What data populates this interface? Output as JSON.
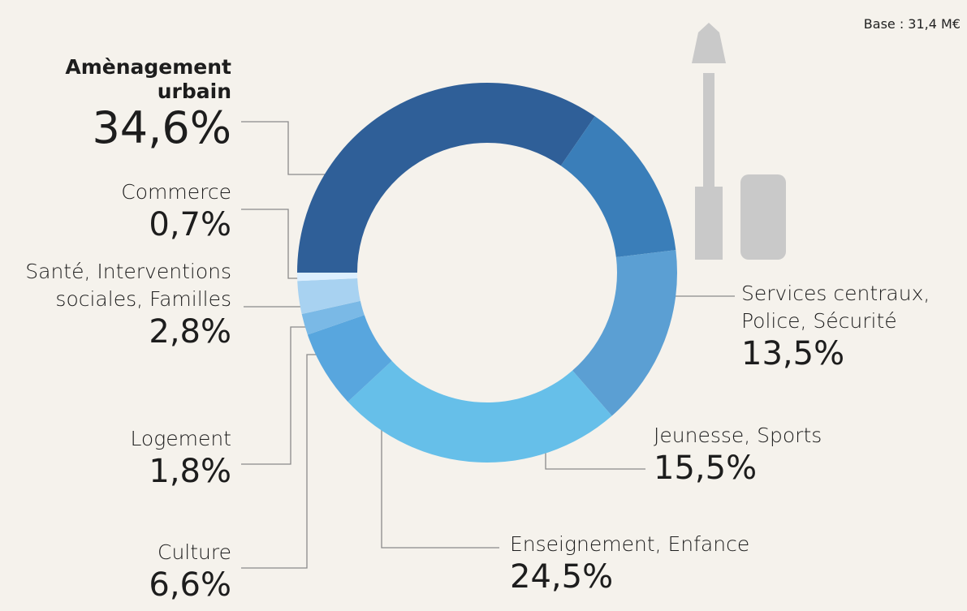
{
  "chart_data": {
    "type": "donut",
    "subtitle": "Base : 31,4 M€",
    "categories": [
      "Amènagement urbain",
      "Services centraux, Police, Sécurité",
      "Jeunesse, Sports",
      "Enseignement, Enfance",
      "Culture",
      "Logement",
      "Santé, Interventions sociales, Familles",
      "Commerce"
    ],
    "values": [
      34.6,
      13.5,
      15.5,
      24.5,
      6.6,
      1.8,
      2.8,
      0.7
    ],
    "value_labels": [
      "34,6%",
      "13,5%",
      "15,5%",
      "24,5%",
      "6,6%",
      "1,8%",
      "2,8%",
      "0,7%"
    ],
    "colors": [
      "#2f5f98",
      "#3a7eb9",
      "#5b9fd3",
      "#66bfe9",
      "#58a6de",
      "#7ab9e6",
      "#a8d2f1",
      "#dcefff"
    ]
  }
}
